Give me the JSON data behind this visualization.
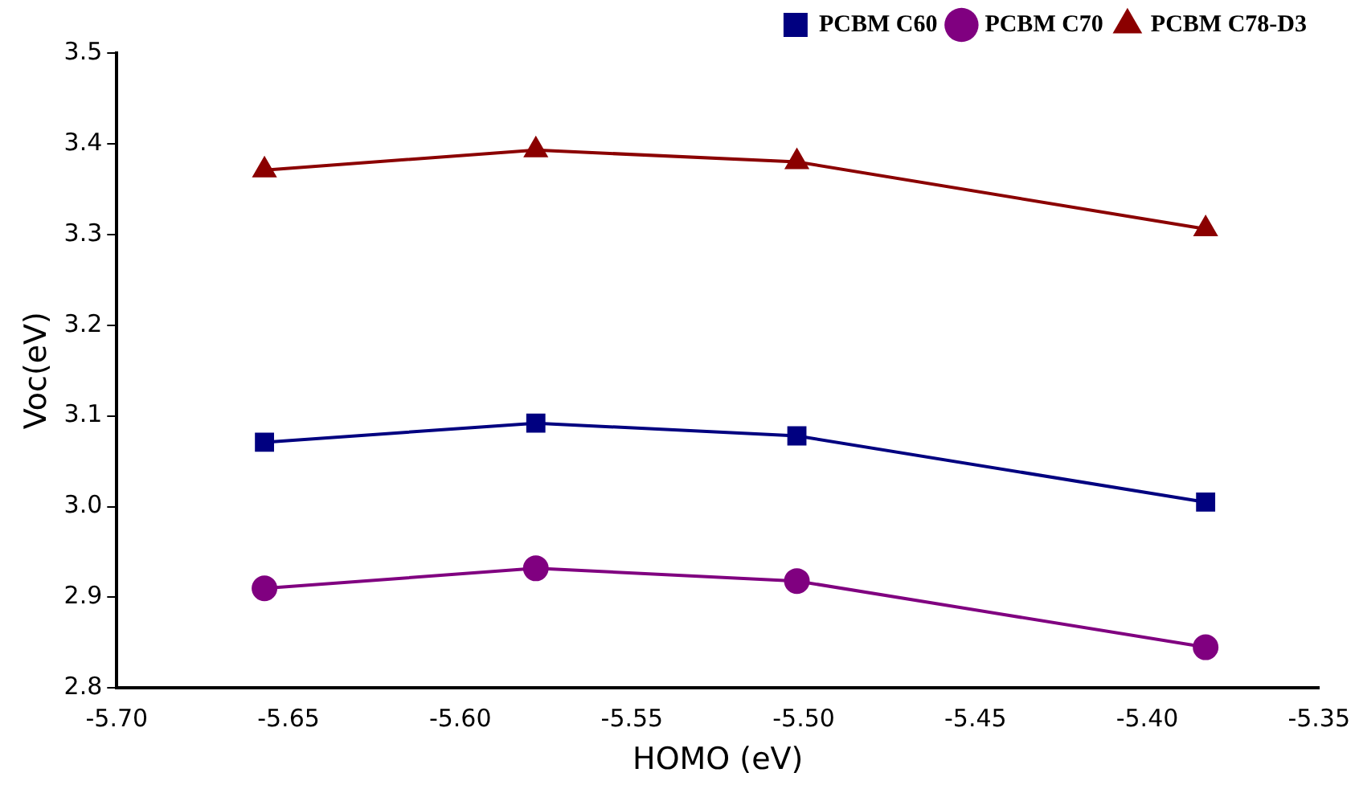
{
  "chart_data": {
    "type": "line",
    "xlabel": "HOMO (eV)",
    "ylabel": "Voc(eV)",
    "xlim": [
      -5.7,
      -5.35
    ],
    "xticks": [
      {
        "value": -5.7,
        "label": "-5.70"
      },
      {
        "value": -5.65,
        "label": "-5.65"
      },
      {
        "value": -5.6,
        "label": "-5.60"
      },
      {
        "value": -5.55,
        "label": "-5.55"
      },
      {
        "value": -5.5,
        "label": "-5.50"
      },
      {
        "value": -5.45,
        "label": "-5.45"
      },
      {
        "value": -5.4,
        "label": "-5.40"
      },
      {
        "value": -5.35,
        "label": "-5.35"
      }
    ],
    "ylim": [
      2.8,
      3.5
    ],
    "yticks": [
      2.8,
      2.9,
      {
        "value": 3.0,
        "label": "3.0"
      },
      3.1,
      3.2,
      3.3,
      3.4,
      3.5
    ],
    "x": [
      -5.657,
      -5.578,
      -5.502,
      -5.383
    ],
    "grid": false,
    "legend": "top right",
    "line_style": "solid",
    "series": [
      {
        "name": "PCBM C60",
        "color": "#000080",
        "marker": "square",
        "values": [
          3.071,
          3.092,
          3.078,
          3.005
        ]
      },
      {
        "name": "PCBM C70",
        "color": "#800080",
        "marker": "circle",
        "values": [
          2.91,
          2.932,
          2.918,
          2.845
        ]
      },
      {
        "name": "PCBM C78-D3",
        "color": "#8b0000",
        "marker": "triangle",
        "values": [
          3.371,
          3.393,
          3.38,
          3.306
        ]
      }
    ]
  }
}
